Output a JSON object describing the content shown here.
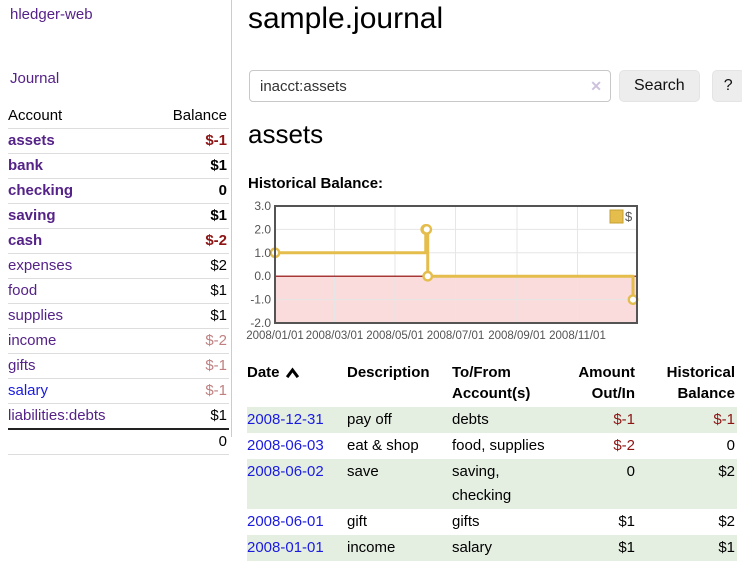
{
  "colors": {
    "link_purple": "#552288",
    "link_blue": "#1b1be0",
    "negative_strong": "#8e1414",
    "negative_muted": "#c08080",
    "row_green": "#e4efe2",
    "divider": "#cccccc",
    "button_bg": "#ededed"
  },
  "sidebar": {
    "app_title": "hledger-web",
    "nav_journal": "Journal",
    "header": {
      "account": "Account",
      "balance": "Balance"
    },
    "accounts": [
      {
        "name": "assets",
        "depth": 1,
        "bold": true,
        "link": "purple",
        "balance": "$-1",
        "bal_class": "neg"
      },
      {
        "name": "bank",
        "depth": 2,
        "bold": true,
        "link": "purple",
        "balance": "$1",
        "bal_class": ""
      },
      {
        "name": "checking",
        "depth": 3,
        "bold": true,
        "link": "purple",
        "balance": "0",
        "bal_class": ""
      },
      {
        "name": "saving",
        "depth": 3,
        "bold": true,
        "link": "purple",
        "balance": "$1",
        "bal_class": ""
      },
      {
        "name": "cash",
        "depth": 2,
        "bold": true,
        "link": "purple",
        "balance": "$-2",
        "bal_class": "neg"
      },
      {
        "name": "expenses",
        "depth": 1,
        "bold": false,
        "link": "purple",
        "balance": "$2",
        "bal_class": ""
      },
      {
        "name": "food",
        "depth": 2,
        "bold": false,
        "link": "purple",
        "balance": "$1",
        "bal_class": ""
      },
      {
        "name": "supplies",
        "depth": 2,
        "bold": false,
        "link": "purple",
        "balance": "$1",
        "bal_class": ""
      },
      {
        "name": "income",
        "depth": 1,
        "bold": false,
        "link": "purple",
        "balance": "$-2",
        "bal_class": "neg-muted"
      },
      {
        "name": "gifts",
        "depth": 2,
        "bold": false,
        "link": "purple",
        "balance": "$-1",
        "bal_class": "neg-muted"
      },
      {
        "name": "salary",
        "depth": 2,
        "bold": false,
        "link": "blue",
        "balance": "$-1",
        "bal_class": "neg-muted"
      },
      {
        "name": "liabilities:debts",
        "depth": 1,
        "bold": false,
        "link": "purple",
        "balance": "$1",
        "bal_class": ""
      }
    ],
    "total": "0"
  },
  "main": {
    "title": "sample.journal",
    "search": {
      "value": "inacct:assets",
      "clear_icon": "✕",
      "button": "Search",
      "help_button": "?"
    },
    "section_title": "assets",
    "chart_label": "Historical Balance:"
  },
  "register": {
    "headers": {
      "date": "Date",
      "description": "Description",
      "accounts": "To/From Account(s)",
      "amount": "Amount Out/In",
      "balance": "Historical Balance"
    },
    "rows": [
      {
        "date": "2008-12-31",
        "description": "pay off",
        "accounts": "debts",
        "amount": "$-1",
        "amount_class": "neg",
        "balance": "$-1",
        "balance_class": "neg"
      },
      {
        "date": "2008-06-03",
        "description": "eat & shop",
        "accounts": "food, supplies",
        "amount": "$-2",
        "amount_class": "neg",
        "balance": "0",
        "balance_class": ""
      },
      {
        "date": "2008-06-02",
        "description": "save",
        "accounts": "saving,\nchecking",
        "amount": "0",
        "amount_class": "",
        "balance": "$2",
        "balance_class": ""
      },
      {
        "date": "2008-06-01",
        "description": "gift",
        "accounts": "gifts",
        "amount": "$1",
        "amount_class": "",
        "balance": "$2",
        "balance_class": ""
      },
      {
        "date": "2008-01-01",
        "description": "income",
        "accounts": "salary",
        "amount": "$1",
        "amount_class": "",
        "balance": "$1",
        "balance_class": ""
      }
    ]
  },
  "chart_data": {
    "type": "line",
    "style": "step",
    "title": "Historical Balance:",
    "series": [
      {
        "name": "$",
        "points": [
          [
            "2008-01-01",
            1
          ],
          [
            "2008-06-01",
            2
          ],
          [
            "2008-06-02",
            2
          ],
          [
            "2008-06-03",
            0
          ],
          [
            "2008-12-31",
            -1
          ]
        ]
      }
    ],
    "xlim": [
      "2008-01-01",
      "2008-12-31"
    ],
    "ylim": [
      -2,
      3
    ],
    "y_ticks": [
      3,
      2,
      1,
      0,
      -1,
      -2
    ],
    "y_tick_labels": [
      "3.0",
      "2.0",
      "1.0",
      "0.0",
      "-1.0",
      "-2.0"
    ],
    "x_ticks": [
      "2008-01-01",
      "2008-03-01",
      "2008-05-01",
      "2008-07-01",
      "2008-09-01",
      "2008-11-01"
    ],
    "x_tick_labels": [
      "2008/01/01",
      "2008/03/01",
      "2008/05/01",
      "2008/07/01",
      "2008/09/01",
      "2008/11/01"
    ],
    "legend": {
      "label": "$",
      "position": "top-right"
    },
    "grid": true,
    "colors": {
      "line": "#e5bd4c",
      "marker_fill": "#ffffff",
      "legend_border": "#c4a030",
      "zero_line": "#8b0000",
      "negative_fill": "#fbdcdc",
      "border": "#545454",
      "grid": "#e6e6e6",
      "tick_text": "#545454"
    }
  }
}
